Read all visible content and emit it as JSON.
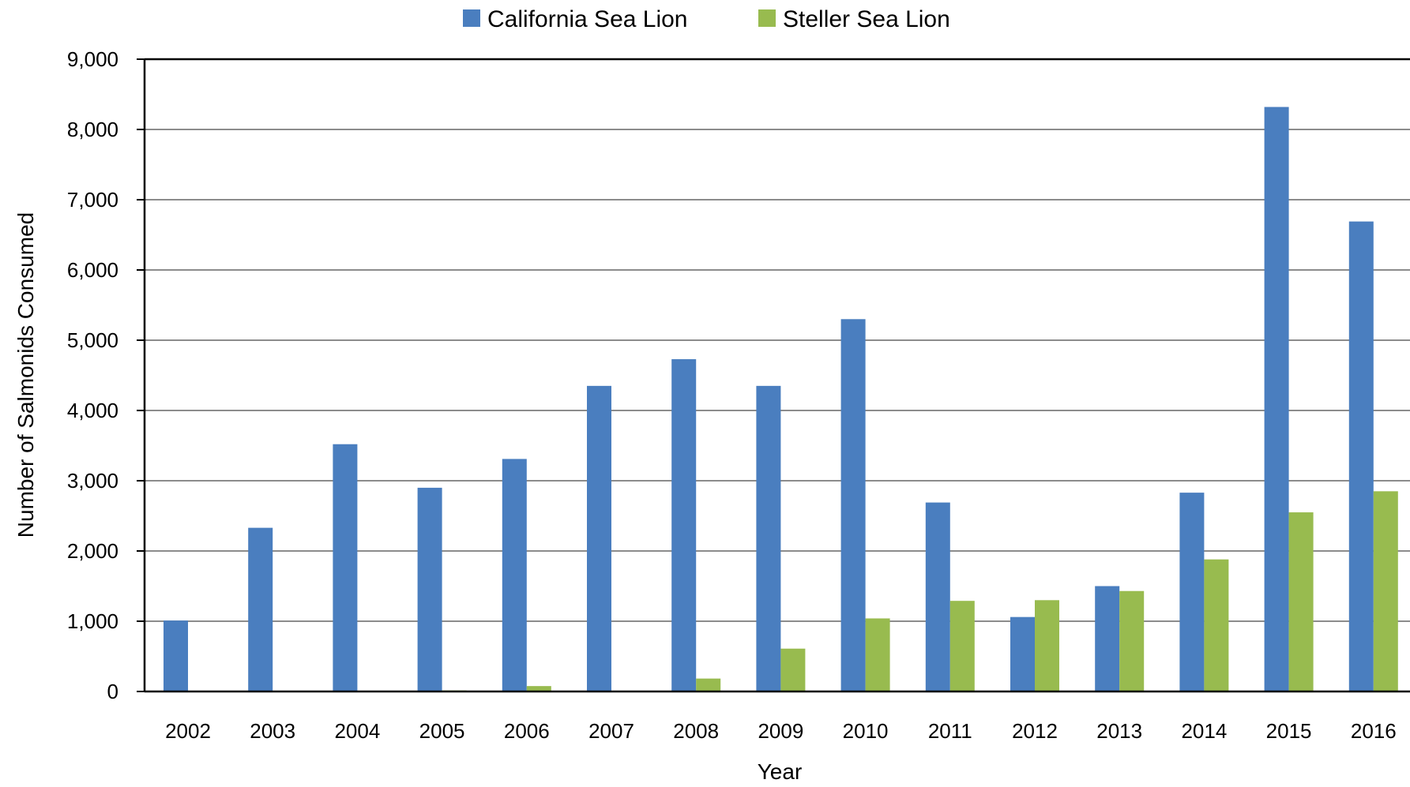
{
  "chart_data": {
    "type": "bar",
    "xlabel": "Year",
    "ylabel": "Number of Salmonids Consumed",
    "ylim": [
      0,
      9000
    ],
    "yticks": [
      0,
      1000,
      2000,
      3000,
      4000,
      5000,
      6000,
      7000,
      8000,
      9000
    ],
    "ytick_labels": [
      "0",
      "1,000",
      "2,000",
      "3,000",
      "4,000",
      "5,000",
      "6,000",
      "7,000",
      "8,000",
      "9,000"
    ],
    "grid": true,
    "legend_position": "top-center",
    "categories": [
      "2002",
      "2003",
      "2004",
      "2005",
      "2006",
      "2007",
      "2008",
      "2009",
      "2010",
      "2011",
      "2012",
      "2013",
      "2014",
      "2015",
      "2016"
    ],
    "series": [
      {
        "name": "California Sea Lion",
        "color": "#4a7ebf",
        "values": [
          1010,
          2330,
          3520,
          2900,
          3310,
          4350,
          4730,
          4350,
          5300,
          2690,
          1060,
          1500,
          2830,
          8320,
          6690
        ]
      },
      {
        "name": "Steller Sea Lion",
        "color": "#98bb4f",
        "values": [
          0,
          0,
          0,
          15,
          77,
          4,
          184,
          610,
          1040,
          1290,
          1300,
          1430,
          1880,
          2550,
          2850
        ]
      }
    ]
  }
}
